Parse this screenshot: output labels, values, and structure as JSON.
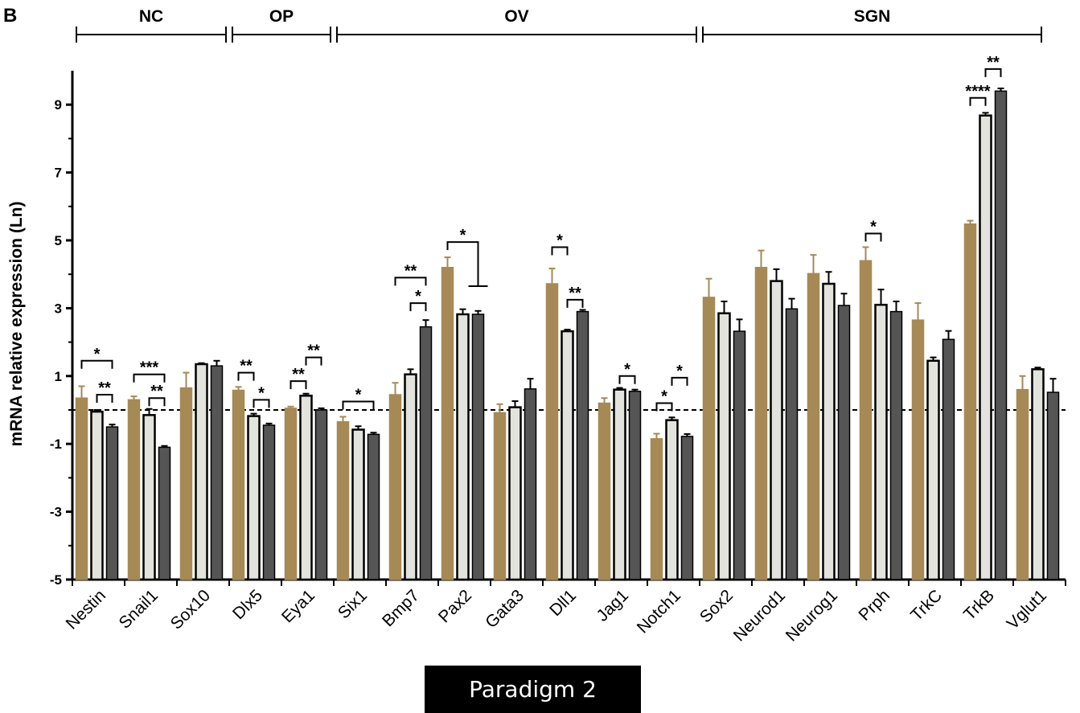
{
  "panel_letter": "B",
  "footer_label": "Paradigm 2",
  "colors": {
    "tan": "#a68955",
    "light": "#e3e3de",
    "dark": "#555555",
    "axis": "#000000"
  },
  "chart_data": {
    "type": "bar",
    "ylabel": "mRNA relative expression (Ln)",
    "ylim": [
      -5,
      10
    ],
    "yticks": [
      -5,
      -3,
      -1,
      1,
      3,
      5,
      7,
      9
    ],
    "reference_line": 0,
    "categories": [
      "Nestin",
      "Snail1",
      "Sox10",
      "Dlx5",
      "Eya1",
      "Six1",
      "Bmp7",
      "Pax2",
      "Gata3",
      "Dll1",
      "Jag1",
      "Notch1",
      "Sox2",
      "Neurod1",
      "Neurog1",
      "Prph",
      "TrkC",
      "TrkB",
      "Vglut1"
    ],
    "series": [
      {
        "color": "tan",
        "values": [
          0.35,
          0.3,
          0.65,
          0.58,
          0.05,
          -0.35,
          0.45,
          4.2,
          -0.08,
          3.72,
          0.2,
          -0.85,
          3.32,
          4.2,
          4.02,
          4.4,
          2.65,
          5.48,
          0.6
        ],
        "errors": [
          0.35,
          0.1,
          0.45,
          0.1,
          0.05,
          0.15,
          0.35,
          0.3,
          0.25,
          0.45,
          0.15,
          0.15,
          0.55,
          0.5,
          0.55,
          0.4,
          0.5,
          0.1,
          0.4
        ]
      },
      {
        "color": "light",
        "values": [
          -0.05,
          -0.15,
          1.35,
          -0.18,
          0.42,
          -0.58,
          1.05,
          2.82,
          0.08,
          2.32,
          0.6,
          -0.3,
          2.85,
          3.8,
          3.72,
          3.1,
          1.45,
          8.68,
          1.2
        ]
      },
      {
        "color": "dark",
        "values": [
          -0.5,
          -1.1,
          1.3,
          -0.45,
          0.0,
          -0.72,
          2.45,
          2.82,
          0.62,
          2.9,
          0.55,
          -0.78,
          2.32,
          2.98,
          3.08,
          2.9,
          2.08,
          9.4,
          0.52
        ],
        "errors": [
          0.07,
          0.04,
          0.15,
          0.05,
          0.05,
          0.05,
          0.2,
          0.1,
          0.3,
          0.05,
          0.05,
          0.07,
          0.35,
          0.3,
          0.35,
          0.3,
          0.25,
          0.08,
          0.4
        ]
      }
    ],
    "light_errors": [
      0.05,
      0.18,
      0.03,
      0.07,
      0.06,
      0.1,
      0.15,
      0.15,
      0.18,
      0.05,
      0.05,
      0.08,
      0.35,
      0.35,
      0.35,
      0.45,
      0.1,
      0.08,
      0.05
    ],
    "groups": [
      {
        "label": "NC",
        "from": 0,
        "to": 2
      },
      {
        "label": "OP",
        "from": 3,
        "to": 4
      },
      {
        "label": "OV",
        "from": 5,
        "to": 11
      },
      {
        "label": "SGN",
        "from": 12,
        "to": 18
      }
    ],
    "significance": [
      {
        "cat": 0,
        "from": 0,
        "to": 2,
        "label": "*",
        "y": 1.45,
        "side": "both"
      },
      {
        "cat": 0,
        "from": 1,
        "to": 2,
        "label": "**",
        "y": 0.45,
        "side": "both"
      },
      {
        "cat": 1,
        "from": 0,
        "to": 2,
        "label": "***",
        "y": 1.05,
        "side": "both"
      },
      {
        "cat": 1,
        "from": 1,
        "to": 2,
        "label": "**",
        "y": 0.35,
        "side": "both"
      },
      {
        "cat": 3,
        "from": 0,
        "to": 1,
        "label": "**",
        "y": 1.1,
        "side": "both"
      },
      {
        "cat": 3,
        "from": 1,
        "to": 2,
        "label": "*",
        "y": 0.3,
        "side": "both"
      },
      {
        "cat": 4,
        "from": 0,
        "to": 1,
        "label": "**",
        "y": 0.85,
        "side": "both"
      },
      {
        "cat": 4,
        "from": 1,
        "to": 2,
        "label": "**",
        "y": 1.55,
        "side": "both"
      },
      {
        "cat": 5,
        "from": 0,
        "to": 2,
        "label": "*",
        "y": 0.25,
        "side": "both"
      },
      {
        "cat": 6,
        "from": 0,
        "to": 2,
        "label": "**",
        "y": 3.9,
        "side": "both"
      },
      {
        "cat": 6,
        "from": 1,
        "to": 2,
        "label": "*",
        "y": 3.15,
        "side": "both"
      },
      {
        "cat": 7,
        "from": 0,
        "to": 2,
        "label": "*",
        "y": 4.95,
        "side": "left-long"
      },
      {
        "cat": 9,
        "from": 0,
        "to": 1,
        "label": "*",
        "y": 4.8,
        "side": "both"
      },
      {
        "cat": 9,
        "from": 1,
        "to": 2,
        "label": "**",
        "y": 3.25,
        "side": "both"
      },
      {
        "cat": 10,
        "from": 1,
        "to": 2,
        "label": "*",
        "y": 1.0,
        "side": "both"
      },
      {
        "cat": 11,
        "from": 0,
        "to": 1,
        "label": "*",
        "y": 0.2,
        "side": "both"
      },
      {
        "cat": 11,
        "from": 1,
        "to": 2,
        "label": "*",
        "y": 0.95,
        "side": "both"
      },
      {
        "cat": 15,
        "from": 0,
        "to": 1,
        "label": "*",
        "y": 5.2,
        "side": "both"
      },
      {
        "cat": 17,
        "from": 0,
        "to": 1,
        "label": "****",
        "y": 9.2,
        "side": "both"
      },
      {
        "cat": 17,
        "from": 1,
        "to": 2,
        "label": "**",
        "y": 10.05,
        "side": "both"
      }
    ]
  }
}
